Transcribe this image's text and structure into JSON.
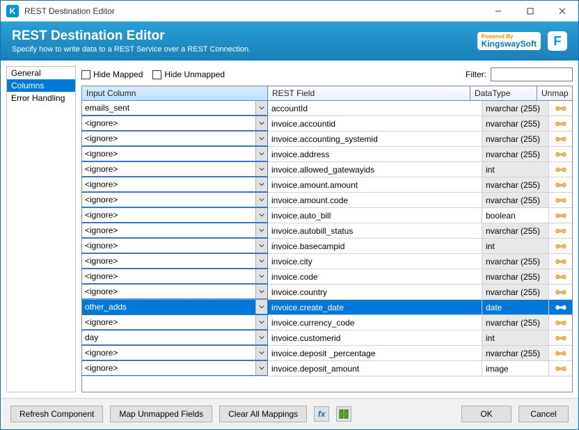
{
  "window": {
    "title": "REST Destination Editor"
  },
  "header": {
    "title": "REST Destination Editor",
    "subtitle": "Specify how to write data to a REST Service over a REST Connection.",
    "powered_by": "Powered By",
    "brand": "KingswaySoft",
    "badge": "F"
  },
  "sidebar": {
    "items": [
      {
        "label": "General",
        "selected": false
      },
      {
        "label": "Columns",
        "selected": true
      },
      {
        "label": "Error Handling",
        "selected": false
      }
    ]
  },
  "toolbar": {
    "hide_mapped": "Hide Mapped",
    "hide_unmapped": "Hide Unmapped",
    "filter_label": "Filter:",
    "filter_value": ""
  },
  "grid": {
    "headers": {
      "input": "Input Column",
      "rest": "REST Field",
      "dtype": "DataType",
      "unmap": "Unmap"
    },
    "column_widths": {
      "input": 268,
      "dtype": 96,
      "unmap": 50
    },
    "selected_bg": "#0078d7",
    "selected_fg": "#ffffff",
    "header_bg": "#e8f1fb",
    "row_border": "#d0d0d0",
    "gray_cell_bg": "#e8e8e8",
    "rows": [
      {
        "input": "emails_sent",
        "rest": "accountId",
        "dtype": "nvarchar (255)",
        "gray": true,
        "selected": false
      },
      {
        "input": "<ignore>",
        "rest": "invoice.accountid",
        "dtype": "nvarchar (255)",
        "gray": true,
        "selected": false
      },
      {
        "input": "<ignore>",
        "rest": "invoice.accounting_systemid",
        "dtype": "nvarchar (255)",
        "gray": true,
        "selected": false
      },
      {
        "input": "<ignore>",
        "rest": "invoice.address",
        "dtype": "nvarchar (255)",
        "gray": true,
        "selected": false
      },
      {
        "input": "<ignore>",
        "rest": "invoice.allowed_gatewayids",
        "dtype": "int",
        "gray": true,
        "selected": false
      },
      {
        "input": "<ignore>",
        "rest": "invoice.amount.amount",
        "dtype": "nvarchar (255)",
        "gray": true,
        "selected": false
      },
      {
        "input": "<ignore>",
        "rest": "invoice.amount.code",
        "dtype": "nvarchar (255)",
        "gray": true,
        "selected": false
      },
      {
        "input": "<ignore>",
        "rest": "invoice.auto_bill",
        "dtype": "boolean",
        "gray": false,
        "selected": false
      },
      {
        "input": "<ignore>",
        "rest": "invoice.autobill_status",
        "dtype": "nvarchar (255)",
        "gray": true,
        "selected": false
      },
      {
        "input": "<ignore>",
        "rest": "invoice.basecampid",
        "dtype": "int",
        "gray": true,
        "selected": false
      },
      {
        "input": "<ignore>",
        "rest": "invoice.city",
        "dtype": "nvarchar (255)",
        "gray": true,
        "selected": false
      },
      {
        "input": "<ignore>",
        "rest": "invoice.code",
        "dtype": "nvarchar (255)",
        "gray": true,
        "selected": false
      },
      {
        "input": "<ignore>",
        "rest": "invoice.country",
        "dtype": "nvarchar (255)",
        "gray": true,
        "selected": false
      },
      {
        "input": "other_adds",
        "rest": "invoice.create_date",
        "dtype": "date",
        "gray": false,
        "selected": true
      },
      {
        "input": "<ignore>",
        "rest": "invoice.currency_code",
        "dtype": "nvarchar (255)",
        "gray": true,
        "selected": false
      },
      {
        "input": "day",
        "rest": "invoice.customerid",
        "dtype": "int",
        "gray": true,
        "selected": false
      },
      {
        "input": "<ignore>",
        "rest": "invoice.deposit _percentage",
        "dtype": "nvarchar (255)",
        "gray": true,
        "selected": false
      },
      {
        "input": "<ignore>",
        "rest": "invoice.deposit_amount",
        "dtype": "image",
        "gray": false,
        "selected": false
      }
    ]
  },
  "footer": {
    "refresh": "Refresh Component",
    "map_unmapped": "Map Unmapped Fields",
    "clear_all": "Clear All Mappings",
    "ok": "OK",
    "cancel": "Cancel"
  },
  "colors": {
    "accent": "#0078d7",
    "header_gradient_top": "#2a9fd6",
    "header_gradient_bottom": "#1a7fb8",
    "window_border": "#1a6fb0"
  }
}
